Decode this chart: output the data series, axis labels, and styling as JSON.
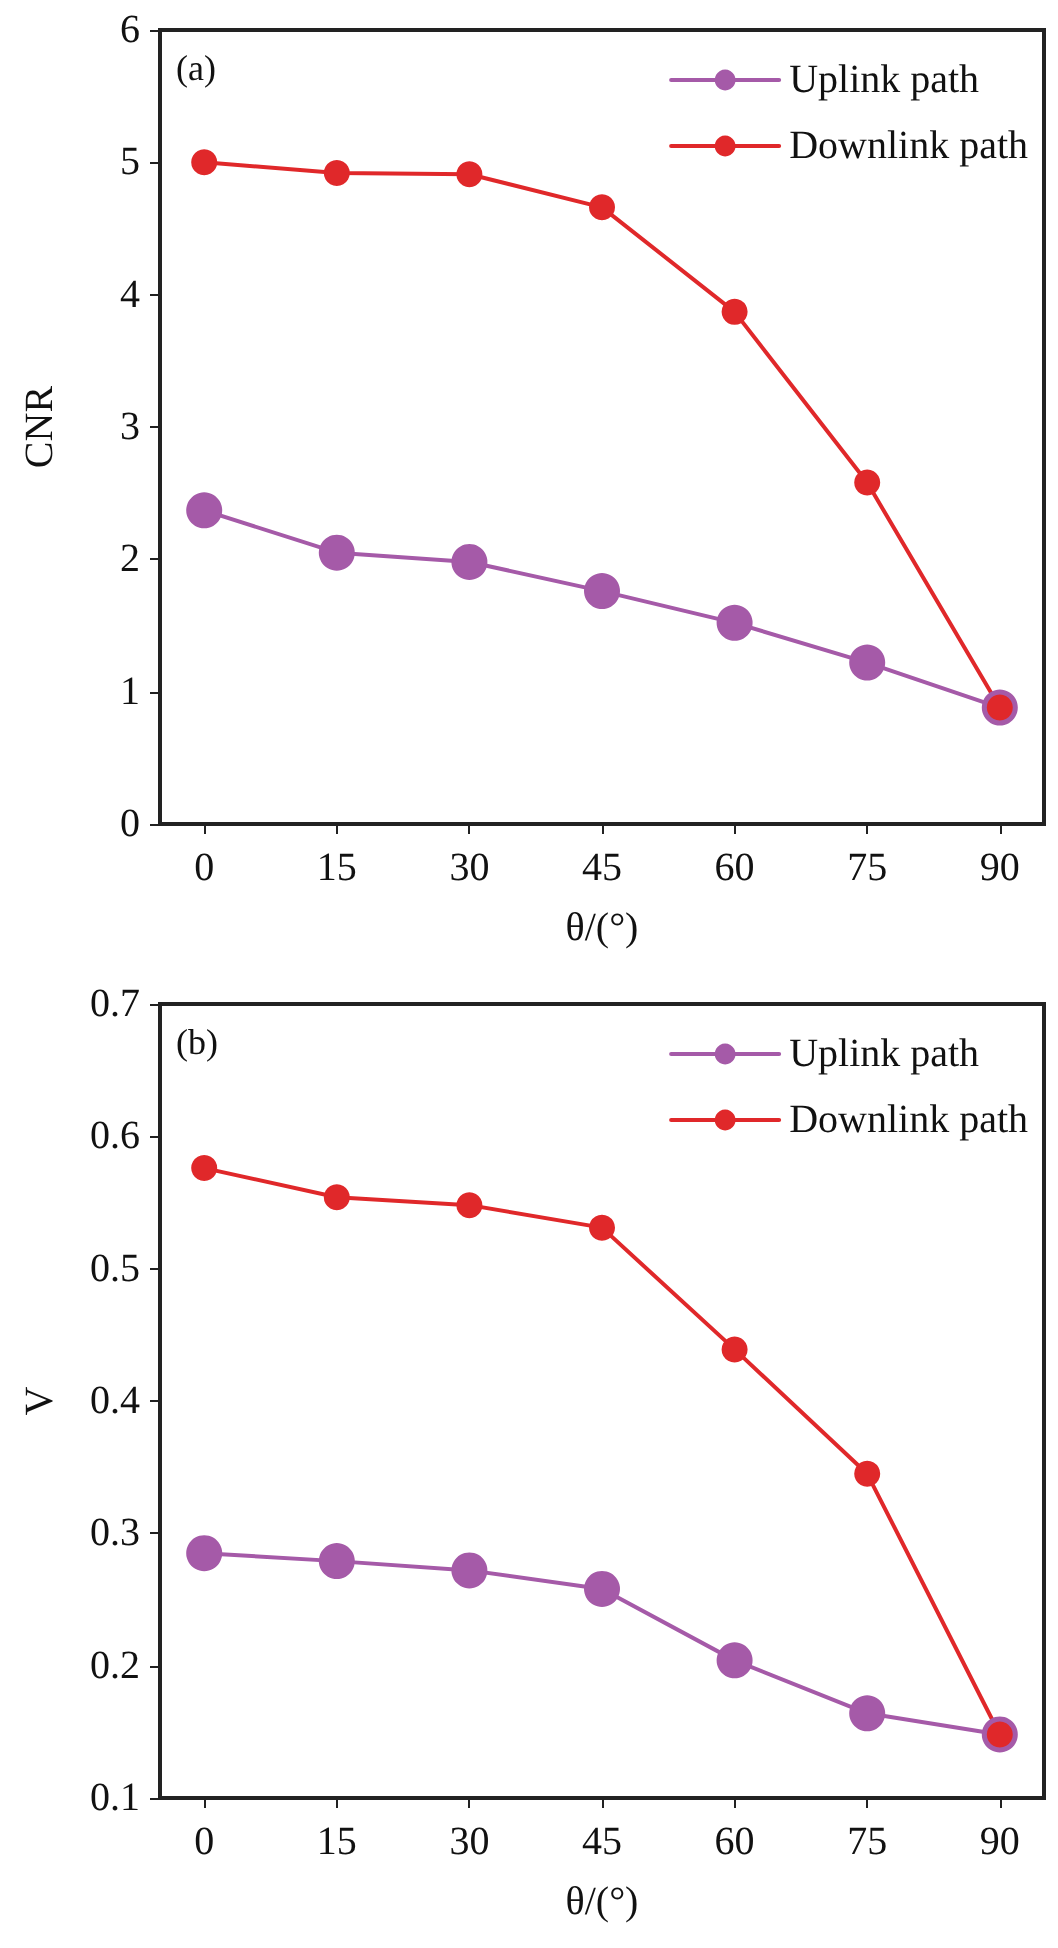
{
  "chart_data": [
    {
      "type": "line",
      "xlabel": "θ/(°)",
      "ylabel": "CNR",
      "annotations": [
        "(a)"
      ],
      "x": [
        0,
        15,
        30,
        45,
        60,
        75,
        90
      ],
      "xlim": [
        -5,
        95
      ],
      "xticks": [
        0,
        15,
        30,
        45,
        60,
        75,
        90
      ],
      "ylim": [
        0,
        6
      ],
      "yticks": [
        0,
        1,
        2,
        3,
        4,
        5,
        6
      ],
      "grid": false,
      "legend": "top right",
      "marker": "circle",
      "line_style": "solid",
      "series": [
        {
          "name": "Uplink path",
          "color": "#a55aa8",
          "values": [
            2.37,
            2.05,
            1.98,
            1.76,
            1.52,
            1.22,
            0.88
          ]
        },
        {
          "name": "Downlink path",
          "color": "#e0282a",
          "values": [
            5.0,
            4.92,
            4.91,
            4.66,
            3.87,
            2.58,
            0.88
          ]
        }
      ]
    },
    {
      "type": "line",
      "xlabel": "θ/(°)",
      "ylabel": "V",
      "annotations": [
        "(b)"
      ],
      "x": [
        0,
        15,
        30,
        45,
        60,
        75,
        90
      ],
      "xlim": [
        -5,
        95
      ],
      "xticks": [
        0,
        15,
        30,
        45,
        60,
        75,
        90
      ],
      "ylim": [
        0.1,
        0.7
      ],
      "yticks": [
        0.1,
        0.2,
        0.3,
        0.4,
        0.5,
        0.6,
        0.7
      ],
      "grid": false,
      "legend": "top right",
      "marker": "circle",
      "line_style": "solid",
      "series": [
        {
          "name": "Uplink path",
          "color": "#a55aa8",
          "values": [
            0.285,
            0.279,
            0.272,
            0.258,
            0.204,
            0.164,
            0.148
          ]
        },
        {
          "name": "Downlink path",
          "color": "#e0282a",
          "values": [
            0.576,
            0.554,
            0.548,
            0.531,
            0.439,
            0.345,
            0.148
          ]
        }
      ]
    }
  ]
}
